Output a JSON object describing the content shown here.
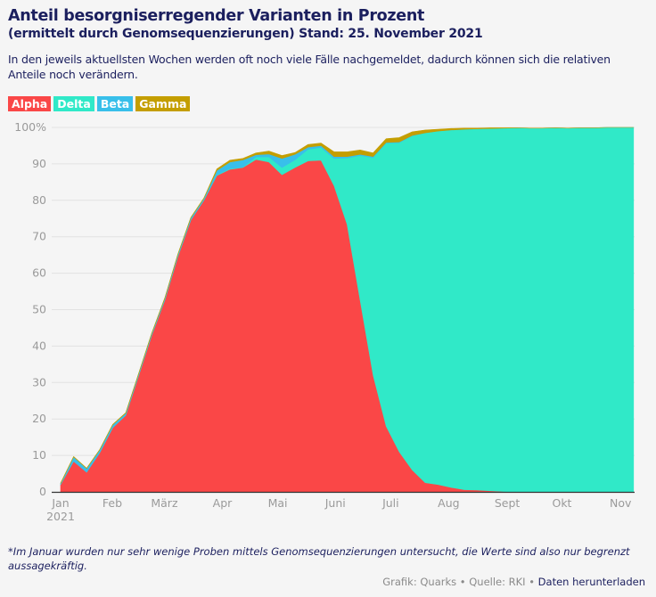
{
  "header": {
    "title": "Anteil besorgniserregender Varianten in Prozent",
    "subtitle": "(ermittelt durch Genomsequenzierungen) Stand: 25. November 2021",
    "description": "In den jeweils aktuellsten Wochen werden oft noch viele Fälle nachgemeldet, dadurch können sich die relativen Anteile noch verändern."
  },
  "chart_data": {
    "type": "area",
    "stacked": true,
    "title": "Anteil besorgniserregender Varianten in Prozent",
    "x_unit": "weeks since start of January 2021",
    "ylim": [
      0,
      100
    ],
    "y_ticks": [
      "0",
      "10",
      "20",
      "30",
      "40",
      "50",
      "60",
      "70",
      "80",
      "90",
      "100%"
    ],
    "y_tick_values": [
      0,
      10,
      20,
      30,
      40,
      50,
      60,
      70,
      80,
      90,
      100
    ],
    "x_ticks": [
      {
        "label": "Jan",
        "sub": "2021",
        "week": 0
      },
      {
        "label": "Feb",
        "week": 3.97
      },
      {
        "label": "März",
        "week": 7.97
      },
      {
        "label": "Apr",
        "week": 12.42
      },
      {
        "label": "Mai",
        "week": 16.67
      },
      {
        "label": "Juni",
        "week": 21.1
      },
      {
        "label": "Juli",
        "week": 25.35
      },
      {
        "label": "Aug",
        "week": 29.8
      },
      {
        "label": "Sept",
        "week": 34.3
      },
      {
        "label": "Okt",
        "week": 38.5
      },
      {
        "label": "Nov",
        "week": 43
      }
    ],
    "grid": true,
    "legend_position": "top-left",
    "series": [
      {
        "name": "Alpha",
        "color": "#fa4747",
        "values": [
          2,
          8.4,
          5.4,
          10.7,
          17.6,
          21,
          32,
          43,
          52.6,
          64.5,
          74.6,
          80,
          86.8,
          88.5,
          89,
          91.2,
          90.5,
          87,
          89,
          90.8,
          91,
          84,
          73.4,
          52.6,
          32,
          18,
          11,
          6,
          2.5,
          2,
          1.2,
          0.6,
          0.5,
          0.3,
          0.1,
          0,
          0,
          0,
          0,
          0,
          0,
          0,
          0,
          0,
          0
        ]
      },
      {
        "name": "Delta",
        "color": "#30e9c8",
        "values": [
          0,
          0,
          0,
          0,
          0,
          0,
          0,
          0,
          0,
          0,
          0,
          0,
          0.2,
          0.2,
          0.1,
          0.7,
          1.4,
          2,
          2.1,
          3.2,
          3.5,
          7.5,
          18.2,
          39.7,
          59.7,
          77.7,
          84.8,
          91.7,
          96,
          97,
          98.1,
          98.9,
          99.1,
          99.4,
          99.7,
          99.9,
          99.8,
          99.8,
          99.9,
          99.8,
          99.9,
          99.9,
          100,
          100,
          100
        ]
      },
      {
        "name": "Beta",
        "color": "#38bfea",
        "values": [
          0.3,
          1.2,
          1,
          0.8,
          0.8,
          0.6,
          0.5,
          0.5,
          0.5,
          0.6,
          0.6,
          0.5,
          1.2,
          1.8,
          2,
          0.6,
          0.8,
          2.5,
          1.5,
          0.6,
          0.5,
          0.5,
          0.4,
          0.3,
          0.3,
          0.2,
          0.2,
          0.1,
          0,
          0,
          0,
          0,
          0,
          0,
          0,
          0,
          0,
          0,
          0,
          0,
          0,
          0,
          0,
          0,
          0
        ]
      },
      {
        "name": "Gamma",
        "color": "#c49e00",
        "values": [
          0.1,
          0.1,
          0.1,
          0.1,
          0.1,
          0.1,
          0.1,
          0.1,
          0.1,
          0.1,
          0.1,
          0.1,
          0.4,
          0.5,
          0.4,
          0.5,
          0.8,
          0.8,
          0.5,
          0.7,
          0.7,
          1.3,
          1.3,
          1.2,
          1,
          1,
          1.2,
          1,
          0.8,
          0.5,
          0.4,
          0.3,
          0.2,
          0.2,
          0.1,
          0,
          0,
          0,
          0,
          0,
          0,
          0,
          0,
          0,
          0
        ]
      }
    ]
  },
  "footer": {
    "note": "*Im Januar wurden nur sehr wenige Proben mittels Genomsequenzierungen untersucht, die Werte sind also nur begrenzt aussagekräftig.",
    "credit": "Grafik: Quarks • Quelle: RKI • ",
    "download_link": "Daten herunterladen"
  }
}
